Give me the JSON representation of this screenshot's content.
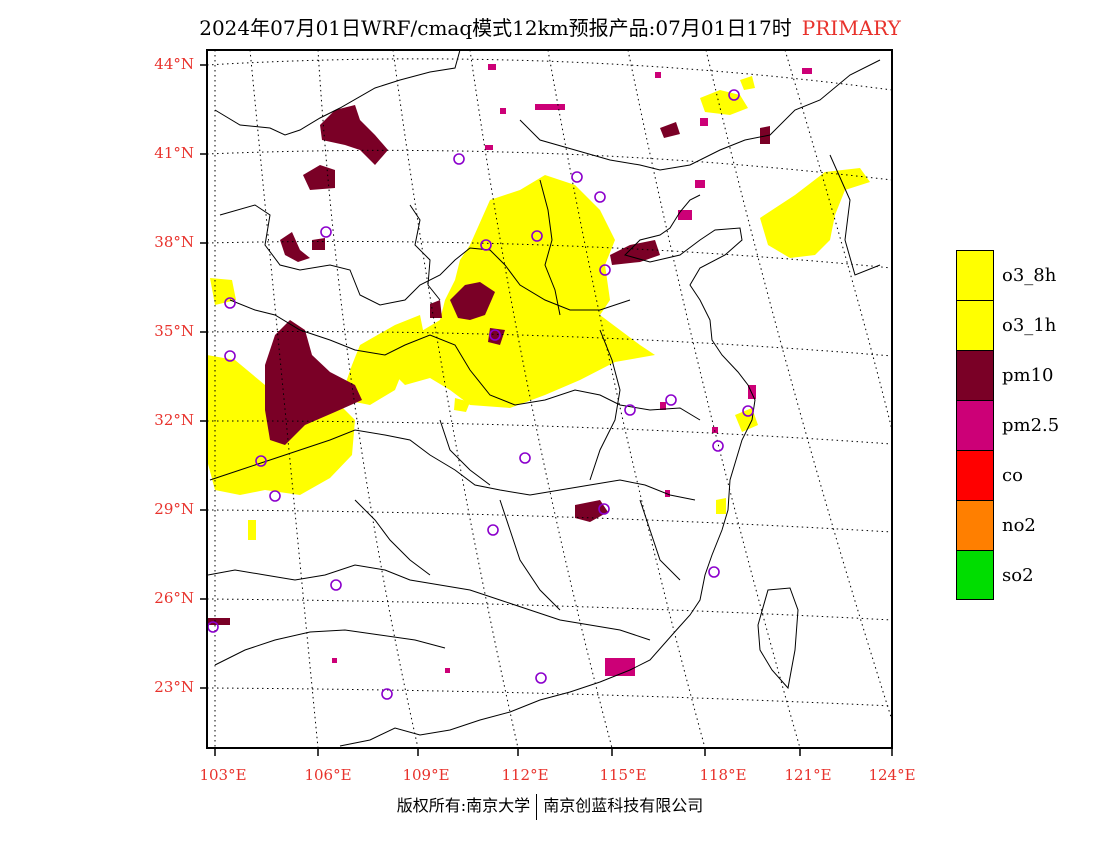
{
  "title": {
    "main": "2024年07月01日WRF/cmaq模式12km预报产品:07月01日17时",
    "tag": "PRIMARY"
  },
  "lat_labels": [
    "44°N",
    "41°N",
    "38°N",
    "35°N",
    "32°N",
    "29°N",
    "26°N",
    "23°N"
  ],
  "lon_labels": [
    "103°E",
    "106°E",
    "109°E",
    "112°E",
    "115°E",
    "118°E",
    "121°E",
    "124°E"
  ],
  "legend": [
    {
      "label": "o3_8h",
      "color": "#ffff00"
    },
    {
      "label": "o3_1h",
      "color": "#ffff00"
    },
    {
      "label": "pm10",
      "color": "#7a0026"
    },
    {
      "label": "pm2.5",
      "color": "#cc0077"
    },
    {
      "label": "co",
      "color": "#ff0000"
    },
    {
      "label": "no2",
      "color": "#ff7f00"
    },
    {
      "label": "so2",
      "color": "#00dd00"
    }
  ],
  "footer": {
    "left": "版权所有:南京大学",
    "right": "南京创蓝科技有限公司"
  }
}
